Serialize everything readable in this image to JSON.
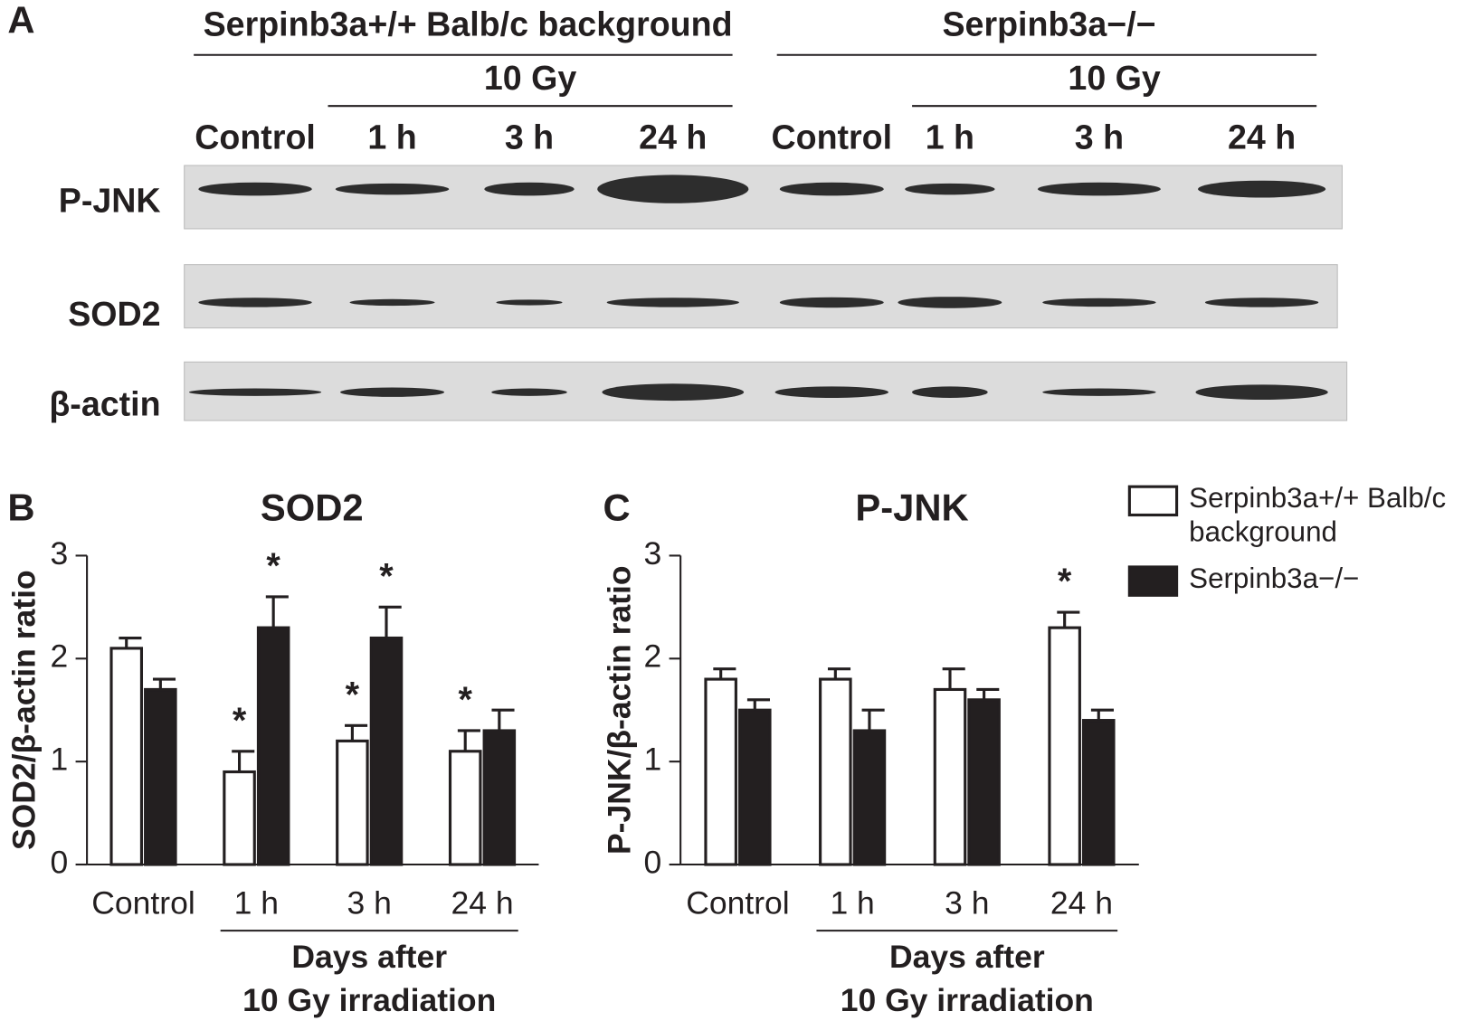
{
  "blot": {
    "panel_label": "A",
    "groups": [
      {
        "title": "Serpinb3a+/+ Balb/c background",
        "dose": "10 Gy",
        "lanes": [
          "Control",
          "1 h",
          "3 h",
          "24 h"
        ]
      },
      {
        "title": "Serpinb3a−/−",
        "dose": "10 Gy",
        "lanes": [
          "Control",
          "1 h",
          "3 h",
          "24 h"
        ]
      }
    ],
    "rows": [
      "P-JNK",
      "SOD2",
      "β-actin"
    ]
  },
  "chart_data": [
    {
      "type": "bar",
      "panel_label": "B",
      "title": "SOD2",
      "ylabel": "SOD2/β-actin ratio",
      "xlabel": [
        "Days after",
        "10 Gy irradiation"
      ],
      "categories": [
        "Control",
        "1 h",
        "3 h",
        "24 h"
      ],
      "ylim": [
        0,
        3
      ],
      "yticks": [
        0,
        1,
        2,
        3
      ],
      "series": [
        {
          "name": "Serpinb3a+/+ Balb/c background",
          "color": "#ffffff",
          "values": [
            2.1,
            0.9,
            1.2,
            1.1
          ],
          "errors": [
            0.1,
            0.2,
            0.15,
            0.2
          ],
          "significance": [
            null,
            "*",
            "*",
            "*"
          ]
        },
        {
          "name": "Serpinb3a−/−",
          "color": "#231f20",
          "values": [
            1.7,
            2.3,
            2.2,
            1.3
          ],
          "errors": [
            0.1,
            0.3,
            0.3,
            0.2
          ],
          "significance": [
            null,
            "*",
            "*",
            null
          ]
        }
      ]
    },
    {
      "type": "bar",
      "panel_label": "C",
      "title": "P-JNK",
      "ylabel": "P-JNK/β-actin ratio",
      "xlabel": [
        "Days after",
        "10 Gy irradiation"
      ],
      "categories": [
        "Control",
        "1 h",
        "3 h",
        "24 h"
      ],
      "ylim": [
        0,
        3
      ],
      "yticks": [
        0,
        1,
        2,
        3
      ],
      "legend": "upper right",
      "series": [
        {
          "name": "Serpinb3a+/+ Balb/c background",
          "color": "#ffffff",
          "values": [
            1.8,
            1.8,
            1.7,
            2.3
          ],
          "errors": [
            0.1,
            0.1,
            0.2,
            0.15
          ],
          "significance": [
            null,
            null,
            null,
            "*"
          ]
        },
        {
          "name": "Serpinb3a−/−",
          "color": "#231f20",
          "values": [
            1.5,
            1.3,
            1.6,
            1.4
          ],
          "errors": [
            0.1,
            0.2,
            0.1,
            0.1
          ],
          "significance": [
            null,
            null,
            null,
            null
          ]
        }
      ]
    }
  ]
}
